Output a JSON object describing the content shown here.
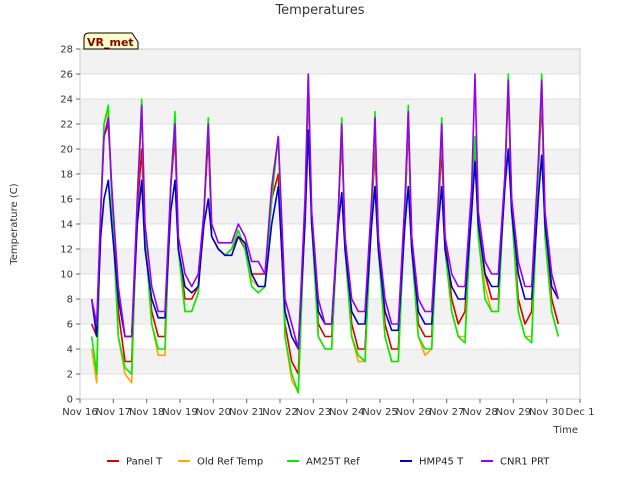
{
  "chart_data": {
    "type": "line",
    "title": "Temperatures",
    "xlabel": "Time",
    "ylabel": "Temperature (C)",
    "badge": "VR_met",
    "ylim": [
      0,
      28
    ],
    "xlim": [
      16,
      31
    ],
    "yticks": [
      0,
      2,
      4,
      6,
      8,
      10,
      12,
      14,
      16,
      18,
      20,
      22,
      24,
      26,
      28
    ],
    "xticks": [
      {
        "x": 16,
        "label": "Nov 16"
      },
      {
        "x": 17,
        "label": "Nov 17"
      },
      {
        "x": 18,
        "label": "Nov 18"
      },
      {
        "x": 19,
        "label": "Nov 19"
      },
      {
        "x": 20,
        "label": "Nov 20"
      },
      {
        "x": 21,
        "label": "Nov 21"
      },
      {
        "x": 22,
        "label": "Nov 22"
      },
      {
        "x": 23,
        "label": "Nov 23"
      },
      {
        "x": 24,
        "label": "Nov 24"
      },
      {
        "x": 25,
        "label": "Nov 25"
      },
      {
        "x": 26,
        "label": "Nov 26"
      },
      {
        "x": 27,
        "label": "Nov 27"
      },
      {
        "x": 28,
        "label": "Nov 28"
      },
      {
        "x": 29,
        "label": "Nov 29"
      },
      {
        "x": 30,
        "label": "Nov 30"
      },
      {
        "x": 31,
        "label": "Dec 1"
      }
    ],
    "series": [
      {
        "name": "Panel T",
        "color": "#dd0000",
        "x": [
          16.35,
          16.5,
          16.62,
          16.72,
          16.85,
          16.95,
          17.15,
          17.35,
          17.55,
          17.72,
          17.85,
          17.95,
          18.15,
          18.35,
          18.55,
          18.72,
          18.85,
          18.95,
          19.15,
          19.35,
          19.55,
          19.72,
          19.85,
          19.95,
          20.15,
          20.35,
          20.55,
          20.75,
          20.95,
          21.15,
          21.35,
          21.55,
          21.75,
          21.95,
          22.15,
          22.35,
          22.55,
          22.75,
          22.85,
          22.95,
          23.15,
          23.35,
          23.55,
          23.75,
          23.85,
          23.95,
          24.15,
          24.35,
          24.55,
          24.75,
          24.85,
          24.95,
          25.15,
          25.35,
          25.55,
          25.75,
          25.85,
          25.95,
          26.15,
          26.35,
          26.55,
          26.75,
          26.85,
          26.95,
          27.15,
          27.35,
          27.55,
          27.75,
          27.85,
          27.95,
          28.15,
          28.35,
          28.55,
          28.75,
          28.85,
          28.95,
          29.15,
          29.35,
          29.55,
          29.75,
          29.85,
          29.95,
          30.15,
          30.35
        ],
        "y": [
          6,
          5,
          15,
          21,
          22,
          17,
          7,
          3,
          3,
          15,
          20,
          13,
          7,
          5,
          5,
          17,
          21,
          12,
          8,
          8,
          9,
          15,
          21,
          13,
          12,
          11.5,
          12,
          13,
          12,
          10,
          10,
          10,
          16,
          18,
          6,
          3,
          2,
          15,
          25,
          14,
          6,
          5,
          5,
          15,
          21,
          13,
          6,
          4,
          4,
          15,
          20,
          13,
          6,
          4,
          4,
          15,
          22,
          13,
          6,
          5,
          5,
          15,
          20,
          13,
          8,
          6,
          7,
          16,
          20,
          14,
          10,
          8,
          8,
          18,
          25,
          15,
          8,
          6,
          7,
          18,
          24,
          14,
          8,
          6
        ]
      },
      {
        "name": "Old Ref Temp",
        "color": "#ffa500",
        "x": [
          16.35,
          16.5,
          16.62,
          16.72,
          16.85,
          16.95,
          17.15,
          17.35,
          17.55,
          17.72,
          17.85,
          17.95,
          18.15,
          18.35,
          18.55,
          18.72,
          18.85,
          18.95,
          19.15,
          19.35,
          19.55,
          19.72,
          19.85,
          19.95,
          20.15,
          20.35,
          20.55,
          20.75,
          20.95,
          21.15,
          21.35,
          21.55,
          21.75,
          21.95,
          22.15,
          22.35,
          22.55,
          22.75,
          22.85,
          22.95,
          23.15,
          23.35,
          23.55,
          23.75,
          23.85,
          23.95,
          24.15,
          24.35,
          24.55,
          24.75,
          24.85,
          24.95,
          25.15,
          25.35,
          25.55,
          25.75,
          25.85,
          25.95,
          26.15,
          26.35,
          26.55,
          26.75,
          26.85,
          26.95,
          27.15,
          27.35,
          27.55,
          27.75,
          27.85,
          27.95,
          28.15,
          28.35,
          28.55,
          28.75,
          28.85,
          28.95,
          29.15,
          29.35,
          29.55,
          29.75,
          29.85,
          29.95,
          30.15,
          30.35
        ],
        "y": [
          4,
          1.3,
          15,
          22,
          23,
          16,
          5,
          2,
          1.3,
          16,
          23,
          13,
          6,
          3.5,
          3.5,
          17,
          22,
          12,
          7,
          7,
          8.5,
          15,
          22,
          13,
          12,
          11.5,
          12,
          13.5,
          12,
          9.5,
          9,
          9,
          16,
          21,
          5,
          1.5,
          0.5,
          15,
          25.5,
          14,
          5,
          4,
          4,
          15,
          22,
          12,
          5,
          3,
          3,
          15,
          22,
          12,
          5,
          3,
          3,
          15,
          23,
          12,
          5,
          3.5,
          4,
          15,
          22,
          12,
          7,
          5,
          5,
          16,
          21,
          13,
          9,
          7,
          7,
          18,
          25.5,
          15,
          7,
          5,
          5,
          18,
          25.5,
          13,
          7,
          5
        ]
      },
      {
        "name": "AM25T Ref",
        "color": "#00ee00",
        "x": [
          16.35,
          16.5,
          16.62,
          16.72,
          16.85,
          16.95,
          17.15,
          17.35,
          17.55,
          17.72,
          17.85,
          17.95,
          18.15,
          18.35,
          18.55,
          18.72,
          18.85,
          18.95,
          19.15,
          19.35,
          19.55,
          19.72,
          19.85,
          19.95,
          20.15,
          20.35,
          20.55,
          20.75,
          20.95,
          21.15,
          21.35,
          21.55,
          21.75,
          21.95,
          22.15,
          22.35,
          22.55,
          22.75,
          22.85,
          22.95,
          23.15,
          23.35,
          23.55,
          23.75,
          23.85,
          23.95,
          24.15,
          24.35,
          24.55,
          24.75,
          24.85,
          24.95,
          25.15,
          25.35,
          25.55,
          25.75,
          25.85,
          25.95,
          26.15,
          26.35,
          26.55,
          26.75,
          26.85,
          26.95,
          27.15,
          27.35,
          27.55,
          27.75,
          27.85,
          27.95,
          28.15,
          28.35,
          28.55,
          28.75,
          28.85,
          28.95,
          29.15,
          29.35,
          29.55,
          29.75,
          29.85,
          29.95,
          30.15,
          30.35
        ],
        "y": [
          5,
          2,
          15,
          22,
          23.5,
          16,
          5,
          2.5,
          2,
          16,
          24,
          13,
          6,
          4,
          4,
          17,
          23,
          12,
          7,
          7,
          8.5,
          15,
          22.5,
          13,
          12,
          11.5,
          12,
          13.5,
          12,
          9,
          8.5,
          9,
          16,
          21,
          5,
          2,
          0.5,
          15,
          26,
          14,
          5,
          4,
          4,
          15,
          22.5,
          12,
          5,
          3.5,
          3,
          15,
          23,
          12,
          5,
          3,
          3,
          15,
          23.5,
          12,
          5,
          4,
          4,
          15,
          22.5,
          12,
          7,
          5,
          4.5,
          16,
          21,
          13,
          8,
          7,
          7,
          18,
          26,
          15,
          7,
          5,
          4.5,
          18,
          26,
          13,
          7,
          5
        ]
      },
      {
        "name": "HMP45 T",
        "color": "#0000cc",
        "x": [
          16.35,
          16.5,
          16.62,
          16.72,
          16.85,
          16.95,
          17.15,
          17.35,
          17.55,
          17.72,
          17.85,
          17.95,
          18.15,
          18.35,
          18.55,
          18.72,
          18.85,
          18.95,
          19.15,
          19.35,
          19.55,
          19.72,
          19.85,
          19.95,
          20.15,
          20.35,
          20.55,
          20.75,
          20.95,
          21.15,
          21.35,
          21.55,
          21.75,
          21.95,
          22.15,
          22.35,
          22.55,
          22.75,
          22.85,
          22.95,
          23.15,
          23.35,
          23.55,
          23.75,
          23.85,
          23.95,
          24.15,
          24.35,
          24.55,
          24.75,
          24.85,
          24.95,
          25.15,
          25.35,
          25.55,
          25.75,
          25.85,
          25.95,
          26.15,
          26.35,
          26.55,
          26.75,
          26.85,
          26.95,
          27.15,
          27.35,
          27.55,
          27.75,
          27.85,
          27.95,
          28.15,
          28.35,
          28.55,
          28.75,
          28.85,
          28.95,
          29.15,
          29.35,
          29.55,
          29.75,
          29.85,
          29.95,
          30.15,
          30.35
        ],
        "y": [
          8,
          5,
          13,
          16,
          17.5,
          14,
          8,
          5,
          5,
          14,
          17.5,
          12,
          8,
          6.5,
          6.5,
          15,
          17.5,
          12,
          9,
          8.5,
          9,
          14,
          16,
          13,
          12,
          11.5,
          11.5,
          13,
          12.5,
          10,
          9,
          9,
          14,
          17,
          7,
          5,
          4,
          14,
          21.5,
          14,
          7,
          6,
          6,
          14,
          16.5,
          12,
          7,
          6,
          6,
          14,
          17,
          12,
          7,
          5.5,
          5.5,
          14,
          17,
          12,
          7,
          6,
          6,
          14,
          17,
          12,
          9,
          8,
          8,
          15,
          19,
          14,
          10,
          9,
          9,
          17,
          20,
          15,
          10,
          8,
          8,
          16,
          19.5,
          14,
          9,
          8
        ]
      },
      {
        "name": "CNR1 PRT",
        "color": "#9900ee",
        "x": [
          16.35,
          16.5,
          16.62,
          16.72,
          16.85,
          16.95,
          17.15,
          17.35,
          17.55,
          17.72,
          17.85,
          17.95,
          18.15,
          18.35,
          18.55,
          18.72,
          18.85,
          18.95,
          19.15,
          19.35,
          19.55,
          19.72,
          19.85,
          19.95,
          20.15,
          20.35,
          20.55,
          20.75,
          20.95,
          21.15,
          21.35,
          21.55,
          21.75,
          21.95,
          22.15,
          22.35,
          22.55,
          22.75,
          22.85,
          22.95,
          23.15,
          23.35,
          23.55,
          23.75,
          23.85,
          23.95,
          24.15,
          24.35,
          24.55,
          24.75,
          24.85,
          24.95,
          25.15,
          25.35,
          25.55,
          25.75,
          25.85,
          25.95,
          26.15,
          26.35,
          26.55,
          26.75,
          26.85,
          26.95,
          27.15,
          27.35,
          27.55,
          27.75,
          27.85,
          27.95,
          28.15,
          28.35,
          28.55,
          28.75,
          28.85,
          28.95,
          29.15,
          29.35,
          29.55,
          29.75,
          29.85,
          29.95,
          30.15,
          30.35
        ],
        "y": [
          8,
          6,
          15,
          21,
          22.5,
          17,
          9,
          5,
          5,
          16,
          23.5,
          14,
          9,
          7,
          7,
          17,
          22,
          13,
          10,
          9,
          10,
          15,
          22,
          14,
          12.5,
          12.5,
          12.5,
          14,
          13,
          11,
          11,
          10,
          17,
          21,
          8,
          6,
          4,
          16,
          26,
          15,
          8,
          6,
          6,
          15,
          22,
          13,
          8,
          7,
          7,
          16,
          22.5,
          13,
          8,
          6,
          6,
          16,
          23,
          13,
          8,
          7,
          7,
          16,
          22,
          13,
          10,
          9,
          9,
          17,
          26,
          15,
          11,
          10,
          10,
          18,
          25.5,
          16,
          11,
          9,
          9,
          19,
          25.5,
          15,
          10,
          8
        ]
      }
    ]
  }
}
